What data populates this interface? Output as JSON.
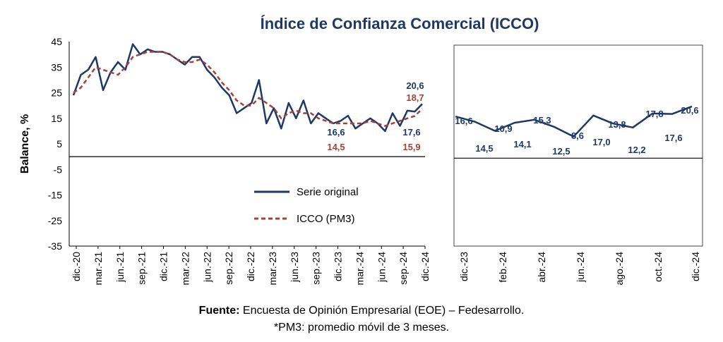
{
  "chart_data": [
    {
      "type": "line",
      "title": "Índice de Confianza Comercial (ICCO)",
      "ylabel": "Balance, %",
      "ylim": [
        -35,
        45
      ],
      "yticks": [
        45,
        35,
        25,
        15,
        5,
        -5,
        -15,
        -25,
        -35
      ],
      "x_tick_labels": [
        "dic.-20",
        "mar.-21",
        "jun.-21",
        "sep.-21",
        "dic.-21",
        "mar.-22",
        "jun.-22",
        "sep.-22",
        "dic.-22",
        "mar.-23",
        "jun.-23",
        "sep.-23",
        "dic.-23",
        "mar.-24",
        "jun.-24",
        "sep.-24",
        "dic.-24"
      ],
      "series": [
        {
          "name": "Serie original",
          "color": "#1f3864",
          "style": "solid",
          "values": [
            24,
            32,
            34,
            39,
            26,
            33,
            37,
            34,
            44,
            40,
            42,
            41,
            41,
            40,
            38,
            36,
            39,
            39,
            34,
            31,
            27,
            24,
            17,
            19,
            21,
            30,
            13,
            19,
            11,
            21,
            15,
            22,
            13,
            17,
            15,
            13,
            14,
            16,
            11,
            13,
            15,
            13,
            10,
            17,
            12,
            18,
            17.6,
            20.6
          ]
        },
        {
          "name": "ICCO (PM3)",
          "color": "#a0443a",
          "style": "dashed",
          "values": [
            25,
            27,
            31,
            35,
            34,
            33,
            32,
            35,
            39,
            40,
            41,
            41,
            41,
            40,
            38,
            37,
            37,
            38,
            36,
            33,
            29,
            26,
            22,
            20,
            20,
            23,
            21,
            19,
            15,
            17,
            18,
            17,
            17,
            15,
            14,
            13,
            13,
            13,
            13,
            13,
            14,
            13,
            12,
            13,
            14,
            15,
            15.9,
            18.7
          ]
        }
      ],
      "annotations": [
        {
          "text": "20,6",
          "series": "Serie original",
          "color": "#1f3864"
        },
        {
          "text": "18,7",
          "series": "ICCO (PM3)",
          "color": "#a0443a"
        },
        {
          "text": "16,6",
          "series": "Serie original",
          "color": "#1f3864"
        },
        {
          "text": "14,5",
          "series": "ICCO (PM3)",
          "color": "#a0443a"
        },
        {
          "text": "17,6",
          "series": "Serie original",
          "color": "#1f3864"
        },
        {
          "text": "15,9",
          "series": "ICCO (PM3)",
          "color": "#a0443a"
        }
      ],
      "legend": [
        "Serie original",
        "ICCO (PM3)"
      ],
      "legend_position": "center-right"
    },
    {
      "type": "line",
      "ylim": [
        -35,
        45
      ],
      "x_tick_labels": [
        "dic.-23",
        "feb.-24",
        "abr.-24",
        "jun.-24",
        "ago.-24",
        "oct.-24",
        "dic.-24"
      ],
      "series": [
        {
          "name": "Serie original",
          "color": "#1f3864",
          "values": [
            16.6,
            14.5,
            10.9,
            14.1,
            15.3,
            12.5,
            8.6,
            17.0,
            13.8,
            12.2,
            17.8,
            17.6,
            20.6
          ],
          "labels": [
            "16,6",
            "14,5",
            "10,9",
            "14,1",
            "15,3",
            "12,5",
            "8,6",
            "17,0",
            "13,8",
            "12,2",
            "17,8",
            "17,6",
            "20,6"
          ]
        }
      ]
    }
  ],
  "footer": {
    "source_label": "Fuente:",
    "source_text": " Encuesta de Opinión Empresarial (EOE) – Fedesarrollo.",
    "note": "*PM3: promedio móvil de 3 meses."
  }
}
